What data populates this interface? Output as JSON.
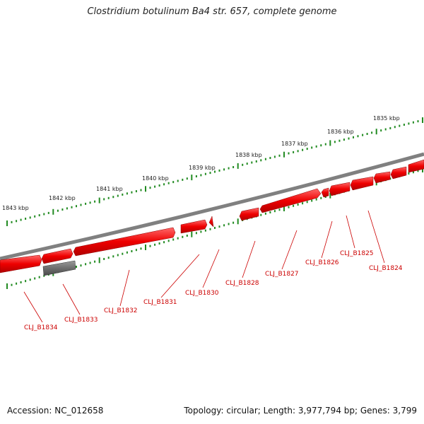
{
  "title": "Clostridium botulinum Ba4 str. 657, complete genome",
  "accession": "Accession: NC_012658",
  "summary": "Topology: circular; Length: 3,977,794 bp; Genes: 3,799",
  "colors": {
    "gene_forward": "#ff0000",
    "gene_reverse": "#ff0000",
    "rna_or_pseudo": "#707070",
    "backbone": "#808080",
    "ticks": "#228b22",
    "gene_label": "#cc0000",
    "kbp_label": "#222222"
  },
  "kbp_labels": [
    "1835 kbp",
    "1836 kbp",
    "1837 kbp",
    "1838 kbp",
    "1839 kbp",
    "1840 kbp",
    "1841 kbp",
    "1842 kbp",
    "1843 kbp"
  ],
  "gene_labels": [
    "CLJ_B1824",
    "CLJ_B1825",
    "CLJ_B1826",
    "CLJ_B1827",
    "CLJ_B1828",
    "CLJ_B1830",
    "CLJ_B1831",
    "CLJ_B1832",
    "CLJ_B1833",
    "CLJ_B1834"
  ]
}
